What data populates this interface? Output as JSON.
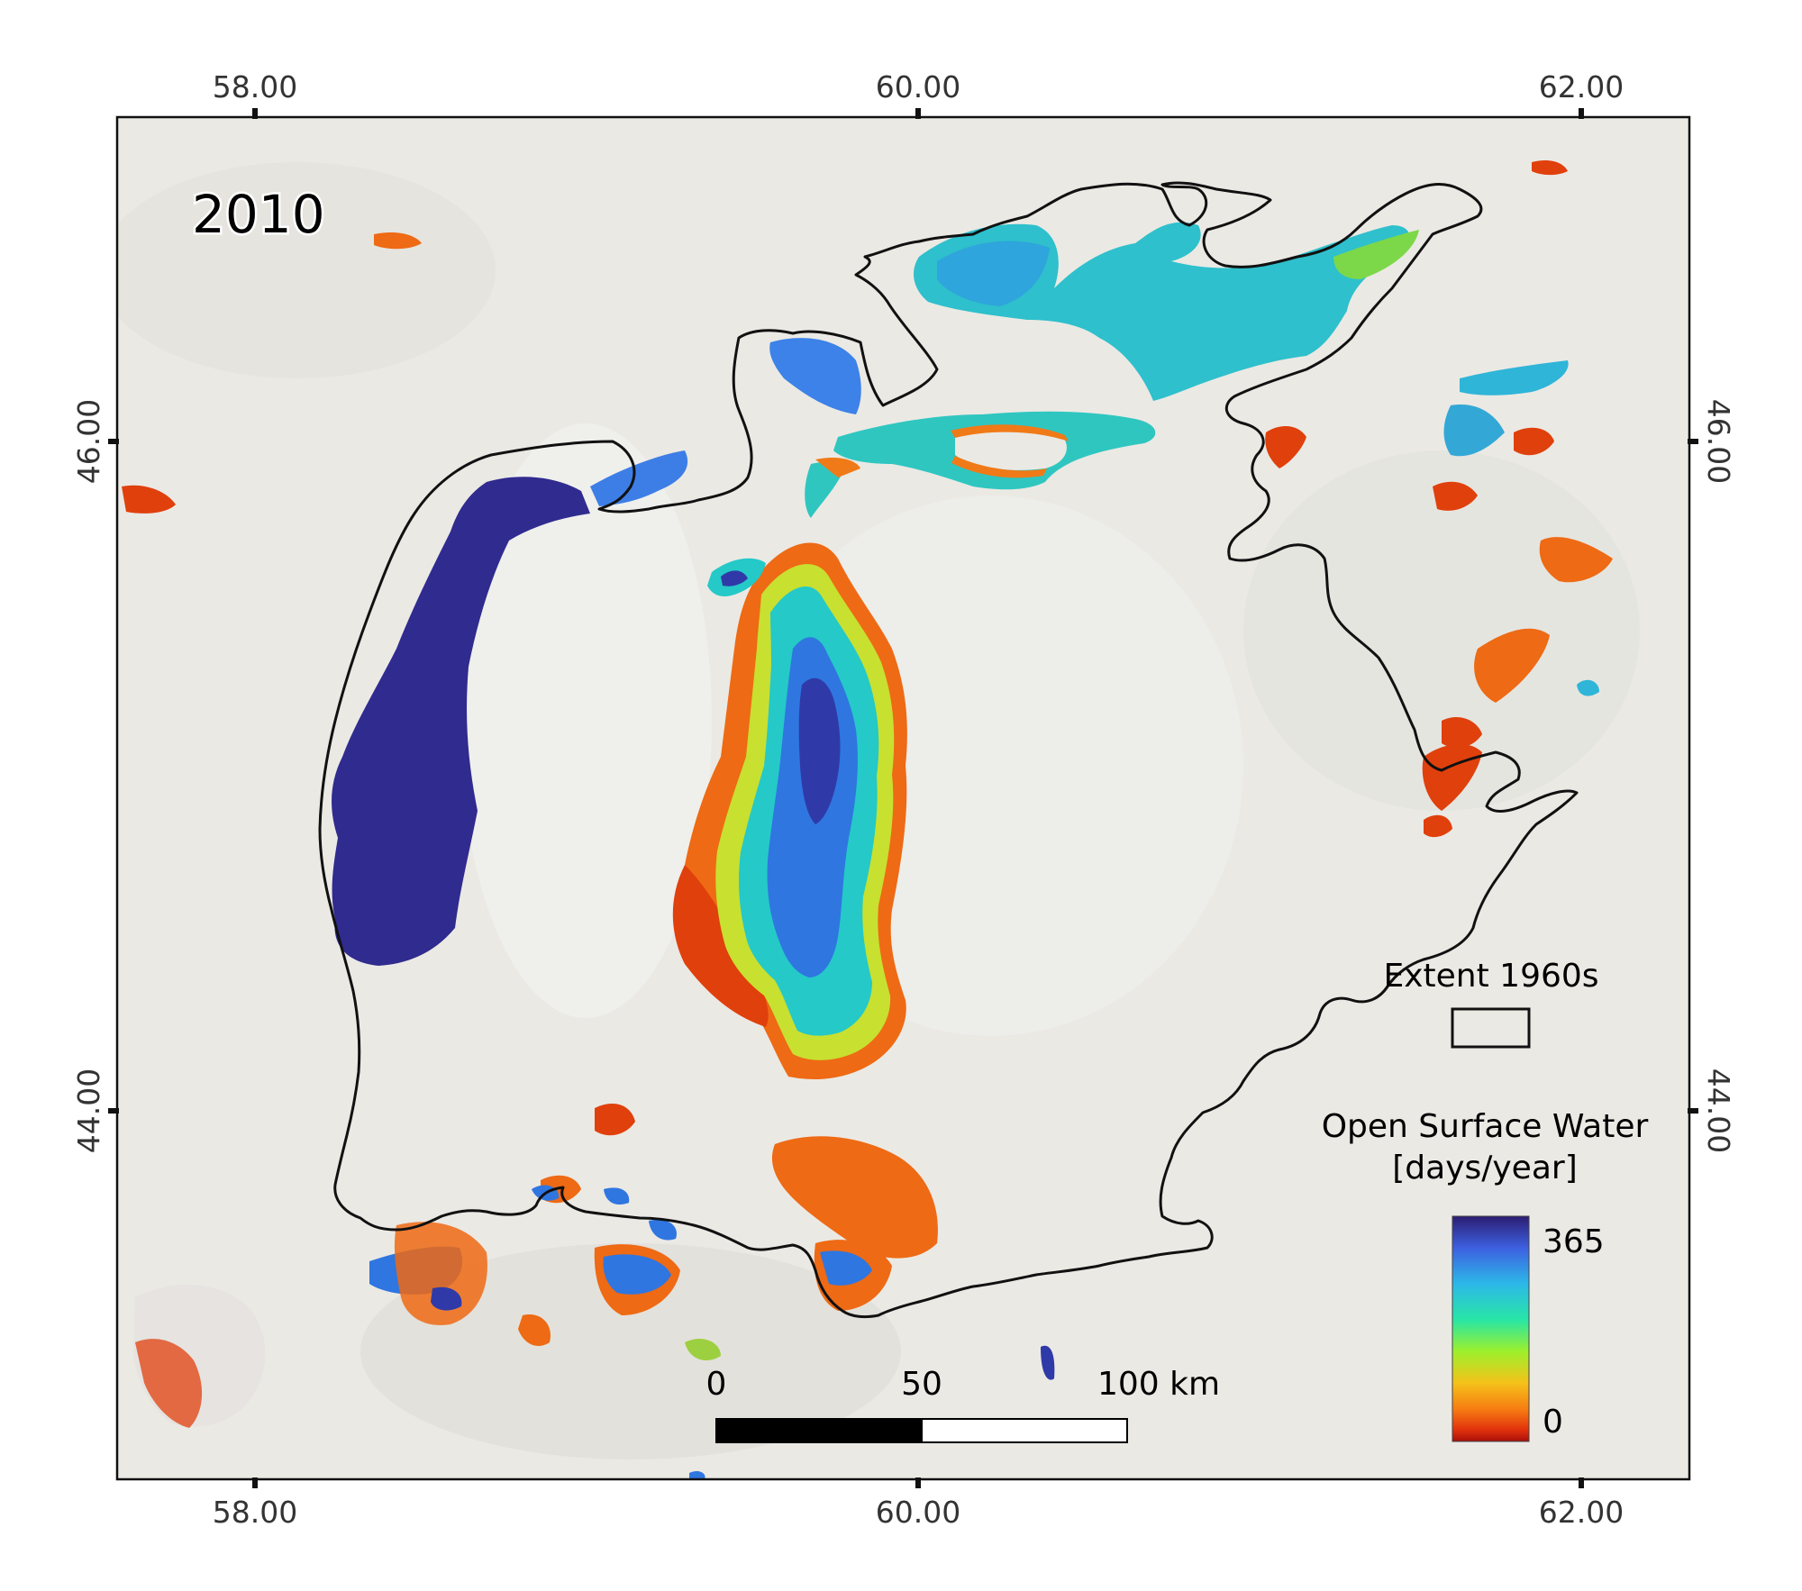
{
  "map": {
    "year": "2010",
    "ticks_top": [
      "58.00",
      "60.00",
      "62.00"
    ],
    "ticks_bottom": [
      "58.00",
      "60.00",
      "62.00"
    ],
    "ticks_left": [
      "46.00",
      "44.00"
    ],
    "ticks_right": [
      "46.00",
      "44.00"
    ]
  },
  "legend": {
    "extent_title": "Extent 1960s",
    "water_title_line1": "Open Surface Water",
    "water_title_line2": "[days/year]",
    "max_label": "365",
    "min_label": "0",
    "colors": [
      "#2b1d72",
      "#3d5fe0",
      "#2cb8e8",
      "#28e6a6",
      "#9df02c",
      "#f5c21a",
      "#f77a12",
      "#e0300c",
      "#a80f0a"
    ]
  },
  "scale_bar": {
    "labels": [
      "0",
      "50",
      "100 km"
    ]
  },
  "colors": {
    "background": "#ebe9e4",
    "outline": "#111111",
    "deep_water": "#2f2b8f",
    "medium_water": "#2e7be6",
    "shallow_water": "#24c9c8",
    "seasonal_water": "#f07a18",
    "ephemeral_water": "#e0400c"
  }
}
